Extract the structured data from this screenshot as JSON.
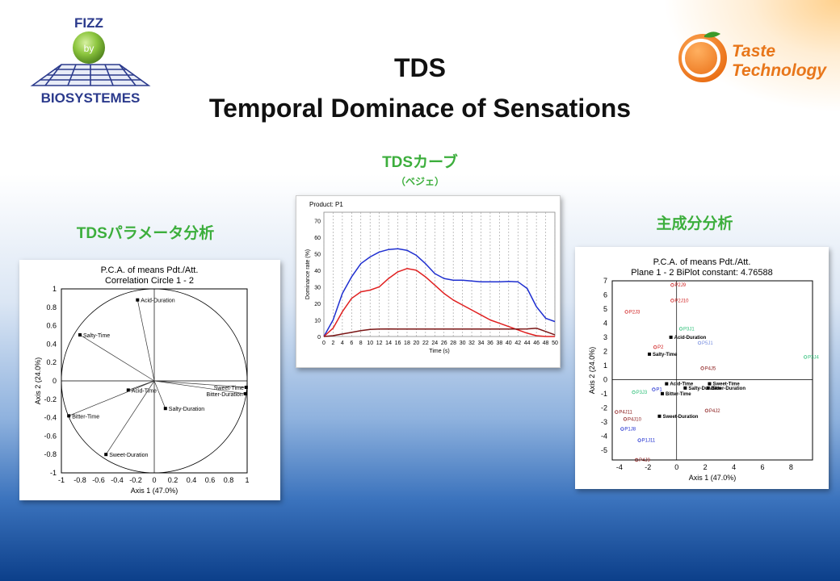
{
  "logos": {
    "fizz_top": "FIZZ",
    "fizz_by": "by",
    "fizz_bottom": "BIOSYSTEMES",
    "taste_line1": "Taste",
    "taste_line2": "Technology"
  },
  "titles": {
    "line1": "TDS",
    "line2": "Temporal Dominace of Sensations"
  },
  "headings": {
    "tds_curve": "TDSカーブ",
    "tds_curve_sub": "（ベジェ）",
    "param_analysis": "TDSパラメータ分析",
    "pca": "主成分分析"
  },
  "colors": {
    "heading_green": "#3cae3c",
    "curve_blue": "#1f2fd0",
    "curve_red": "#e02020",
    "curve_darkred": "#7a1515"
  },
  "chart_data": [
    {
      "type": "scatter",
      "title": "P.C.A. of means Pdt./Att.",
      "subtitle": "Correlation Circle 1 - 2",
      "xlabel": "Axis 1 (47.0%)",
      "ylabel": "Axis 2 (24.0%)",
      "xlim": [
        -1,
        1
      ],
      "ylim": [
        -1,
        1
      ],
      "xticks": [
        "-1",
        "-0.8",
        "-0.6",
        "-0.4",
        "-0.2",
        "0",
        "0.2",
        "0.4",
        "0.6",
        "0.8",
        "1"
      ],
      "yticks": [
        "1",
        "0.8",
        "0.6",
        "0.4",
        "0.2",
        "0",
        "-0.2",
        "-0.4",
        "-0.6",
        "-0.8",
        "-1"
      ],
      "points": [
        {
          "label": "Acid-Duration",
          "x": -0.18,
          "y": 0.88
        },
        {
          "label": "Salty-Time",
          "x": -0.8,
          "y": 0.5
        },
        {
          "label": "Acid-Time",
          "x": -0.28,
          "y": -0.1
        },
        {
          "label": "Salty-Duration",
          "x": 0.12,
          "y": -0.3
        },
        {
          "label": "Sweet-Time",
          "x": 0.99,
          "y": -0.07
        },
        {
          "label": "Bitter-Duration",
          "x": 0.98,
          "y": -0.14
        },
        {
          "label": "Bitter-Time",
          "x": -0.92,
          "y": -0.38
        },
        {
          "label": "Sweet-Duration",
          "x": -0.52,
          "y": -0.8
        }
      ]
    },
    {
      "type": "line",
      "title": "Product: P1",
      "xlabel": "Time (s)",
      "ylabel": "Dominance rate (%)",
      "xlim": [
        0,
        50
      ],
      "ylim": [
        0,
        75
      ],
      "xticks": [
        "0",
        "2",
        "4",
        "6",
        "8",
        "10",
        "12",
        "14",
        "16",
        "18",
        "20",
        "22",
        "24",
        "26",
        "28",
        "30",
        "32",
        "34",
        "36",
        "38",
        "40",
        "42",
        "44",
        "46",
        "48",
        "50"
      ],
      "yticks": [
        "0",
        "10",
        "20",
        "30",
        "40",
        "50",
        "60",
        "70"
      ],
      "series": [
        {
          "name": "blue",
          "x": [
            0,
            2,
            4,
            6,
            8,
            10,
            12,
            14,
            16,
            18,
            20,
            22,
            24,
            26,
            28,
            30,
            32,
            34,
            36,
            38,
            40,
            42,
            44,
            46,
            48,
            50
          ],
          "y": [
            0,
            10,
            26,
            36,
            44,
            48,
            51,
            52.5,
            53,
            52,
            49,
            44,
            38,
            35,
            34,
            34,
            33.5,
            33,
            33,
            33,
            33.2,
            33,
            29,
            18,
            11,
            9
          ]
        },
        {
          "name": "red",
          "x": [
            0,
            2,
            4,
            6,
            8,
            10,
            12,
            14,
            16,
            18,
            20,
            22,
            24,
            26,
            28,
            30,
            32,
            34,
            36,
            38,
            40,
            42,
            44,
            46,
            48,
            50
          ],
          "y": [
            0,
            5,
            15,
            23,
            27,
            28,
            30,
            35,
            39,
            41,
            40,
            36,
            31,
            26,
            22,
            19,
            16,
            13,
            10,
            8,
            6,
            4,
            2,
            0.5,
            0,
            0
          ]
        },
        {
          "name": "darkred",
          "x": [
            0,
            2,
            4,
            6,
            8,
            10,
            12,
            14,
            16,
            18,
            20,
            22,
            24,
            26,
            28,
            30,
            32,
            34,
            36,
            38,
            40,
            42,
            44,
            46,
            48,
            50
          ],
          "y": [
            0,
            0.5,
            1.5,
            2.5,
            3.5,
            4.3,
            4.5,
            4.6,
            4.5,
            4.5,
            4.5,
            4.5,
            4.5,
            4.5,
            4.5,
            4.5,
            4.5,
            4.5,
            4.5,
            4.5,
            4.5,
            4.5,
            4.6,
            5,
            3,
            1
          ]
        }
      ]
    },
    {
      "type": "scatter",
      "title": "P.C.A. of means Pdt./Att.",
      "subtitle": "Plane 1 - 2 BiPlot constant: 4.76588",
      "xlabel": "Axis 1 (47.0%)",
      "ylabel": "Axis 2 (24.0%)",
      "xlim": [
        -4.5,
        9.5
      ],
      "ylim": [
        -5.7,
        7
      ],
      "xticks": [
        "-4",
        "-2",
        "0",
        "2",
        "4",
        "6",
        "8"
      ],
      "yticks": [
        "7",
        "6",
        "5",
        "4",
        "3",
        "2",
        "1",
        "0",
        "-1",
        "-2",
        "-3",
        "-4",
        "-5"
      ],
      "attributes": [
        {
          "label": "Acid-Duration",
          "x": -0.4,
          "y": 3.0
        },
        {
          "label": "Salty-Time",
          "x": -1.9,
          "y": 1.8
        },
        {
          "label": "Sweet-Duration",
          "x": -1.2,
          "y": -2.6
        },
        {
          "label": "Salty-Duration",
          "x": 0.6,
          "y": -0.6
        },
        {
          "label": "Sweet-Time",
          "x": 2.3,
          "y": -0.3
        },
        {
          "label": "Bitter-Duration",
          "x": 2.2,
          "y": -0.6
        },
        {
          "label": "Bitter-Time",
          "x": -1.0,
          "y": -1.0
        },
        {
          "label": "Acid-Time",
          "x": -0.7,
          "y": -0.3
        }
      ],
      "products": [
        {
          "label": "P2J9",
          "x": -0.3,
          "y": 6.7,
          "group": "red"
        },
        {
          "label": "P2J10",
          "x": -0.3,
          "y": 5.6,
          "group": "red"
        },
        {
          "label": "P2J3",
          "x": -3.5,
          "y": 4.8,
          "group": "red"
        },
        {
          "label": "P2",
          "x": -1.5,
          "y": 2.3,
          "group": "red"
        },
        {
          "label": "P3J4",
          "x": 9.0,
          "y": 1.6,
          "group": "green"
        },
        {
          "label": "P3J1",
          "x": 0.3,
          "y": 3.6,
          "group": "green"
        },
        {
          "label": "P5J1",
          "x": 1.6,
          "y": 2.6,
          "group": "lightblue"
        },
        {
          "label": "P4J5",
          "x": 1.8,
          "y": 0.8,
          "group": "darkred"
        },
        {
          "label": "P4J2",
          "x": 2.1,
          "y": -2.2,
          "group": "darkred"
        },
        {
          "label": "P4J11",
          "x": -4.2,
          "y": -2.3,
          "group": "darkred"
        },
        {
          "label": "P4J10",
          "x": -3.6,
          "y": -2.8,
          "group": "darkred"
        },
        {
          "label": "P1J8",
          "x": -3.8,
          "y": -3.5,
          "group": "blue"
        },
        {
          "label": "P1J11",
          "x": -2.6,
          "y": -4.3,
          "group": "blue"
        },
        {
          "label": "P4J9",
          "x": -2.8,
          "y": -5.7,
          "group": "darkred"
        },
        {
          "label": "P1",
          "x": -1.6,
          "y": -0.7,
          "group": "blue"
        },
        {
          "label": "P3J3",
          "x": -3.0,
          "y": -0.9,
          "group": "green"
        }
      ]
    }
  ]
}
